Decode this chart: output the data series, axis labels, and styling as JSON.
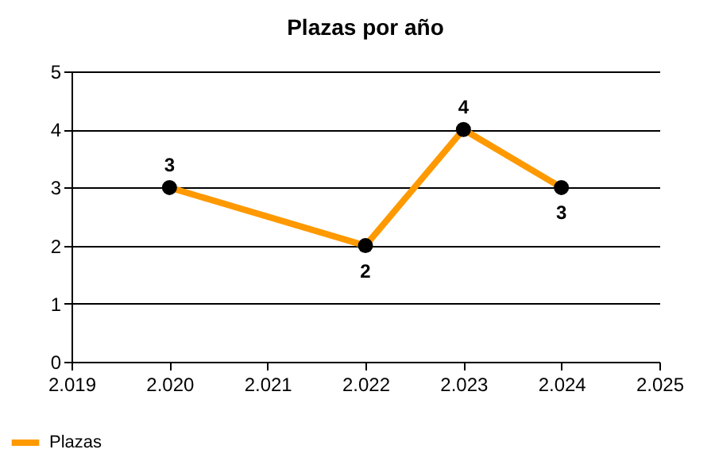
{
  "chart_data": {
    "type": "line",
    "title": "Plazas por año",
    "x": [
      2020,
      2022,
      2023,
      2024
    ],
    "series": [
      {
        "name": "Plazas",
        "color": "#ff9900",
        "values": [
          3,
          2,
          4,
          3
        ]
      }
    ],
    "xlim": [
      2019,
      2025
    ],
    "xticks": [
      {
        "value": 2019,
        "label": "2.019"
      },
      {
        "value": 2020,
        "label": "2.020"
      },
      {
        "value": 2021,
        "label": "2.021"
      },
      {
        "value": 2022,
        "label": "2.022"
      },
      {
        "value": 2023,
        "label": "2.023"
      },
      {
        "value": 2024,
        "label": "2.024"
      },
      {
        "value": 2025,
        "label": "2.025"
      }
    ],
    "ylim": [
      0,
      5
    ],
    "yticks": [
      0,
      1,
      2,
      3,
      4,
      5
    ],
    "grid": "y",
    "legend": "bottom",
    "marker": "circle",
    "line_style": "solid",
    "data_labels": true
  }
}
